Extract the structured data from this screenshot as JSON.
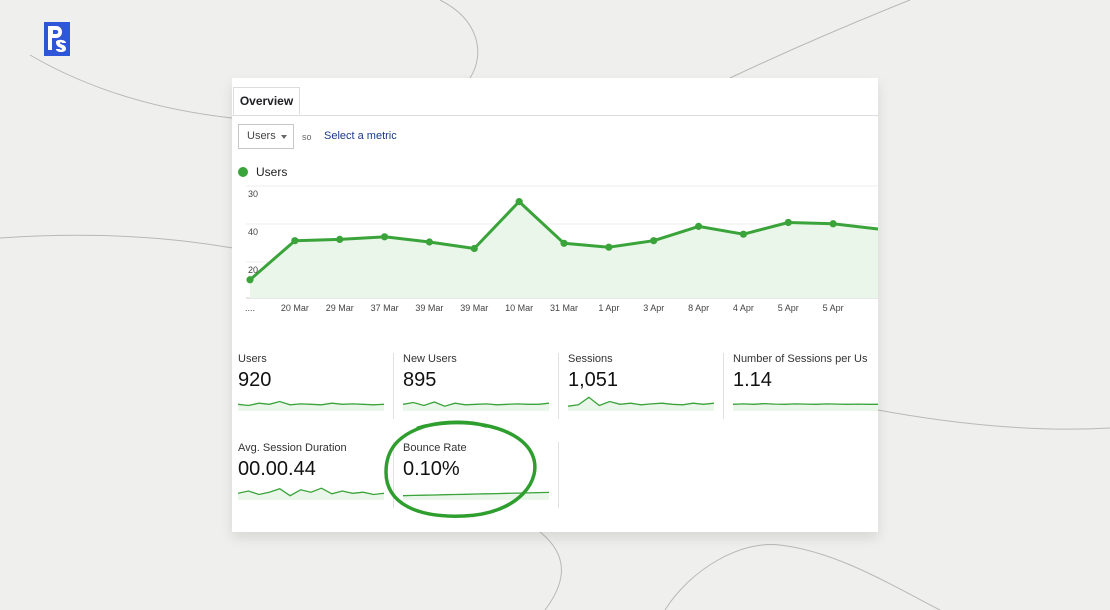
{
  "overview_tab": {
    "label": "Overview"
  },
  "metric_selector": {
    "value": "Users",
    "vs_label": "so",
    "select_metric_label": "Select a metric"
  },
  "legend": {
    "label": "Users",
    "color": "#3aa33a"
  },
  "colors": {
    "accent_green": "#3aa33a",
    "annotation_green": "#2e9e2e",
    "fill_green": "#eaf6ea"
  },
  "chart_data": {
    "type": "line",
    "series": [
      {
        "name": "Users",
        "values": [
          22,
          37,
          37.5,
          38.5,
          36.5,
          34,
          52,
          36,
          34.5,
          37,
          42.5,
          39.5,
          44,
          43.5,
          41.5
        ]
      }
    ],
    "categories": [
      "....",
      "20 Mar",
      "29 Mar",
      "37 Mar",
      "39 Mar",
      "39 Mar",
      "10 Mar",
      "31 Mar",
      "1 Apr",
      "3 Apr",
      "8 Apr",
      "4 Apr",
      "5 Apr",
      "5 Apr",
      ""
    ],
    "y_tick_labels": [
      "30",
      "40",
      "20"
    ],
    "ylim": [
      15,
      58
    ],
    "grid": true
  },
  "scorecards": [
    {
      "title": "Users",
      "value": "920",
      "sparkline": [
        50,
        45,
        55,
        50,
        62,
        48,
        52,
        50,
        48,
        55,
        50,
        52,
        50,
        48,
        50
      ]
    },
    {
      "title": "New Users",
      "value": "895",
      "sparkline": [
        50,
        58,
        45,
        60,
        42,
        55,
        48,
        50,
        52,
        48,
        50,
        52,
        50,
        50,
        55
      ]
    },
    {
      "title": "Sessions",
      "value": "1,051",
      "sparkline": [
        42,
        48,
        80,
        45,
        62,
        50,
        55,
        48,
        52,
        55,
        50,
        48,
        55,
        50,
        55
      ]
    },
    {
      "title": "Number of Sessions per Us",
      "value": "1.14",
      "sparkline": [
        50,
        52,
        50,
        53,
        51,
        50,
        52,
        51,
        50,
        52,
        51,
        50,
        51,
        50,
        50
      ]
    },
    {
      "title": "Avg. Session Duration",
      "value": "00.00.44",
      "sparkline": [
        50,
        60,
        45,
        55,
        70,
        40,
        65,
        55,
        72,
        48,
        60,
        50,
        55,
        45,
        50
      ]
    },
    {
      "title": "Bounce Rate",
      "value": "0.10%",
      "sparkline": [
        40,
        41,
        42,
        43,
        44,
        45,
        46,
        47,
        48,
        49,
        50,
        51,
        52,
        53,
        54
      ]
    }
  ]
}
